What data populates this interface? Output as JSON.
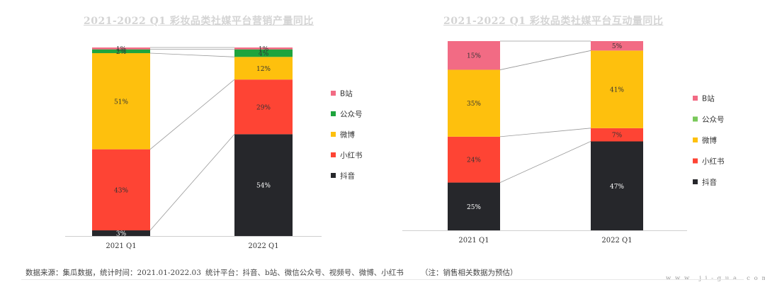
{
  "chart_data": [
    {
      "type": "bar",
      "stacked": true,
      "title": "2021-2022 Q1 彩妆品类社媒平台营销产量同比",
      "categories": [
        "2021 Q1",
        "2022 Q1"
      ],
      "unit": "%",
      "series": [
        {
          "name": "抖音",
          "color": "#26272b",
          "values": [
            3,
            54
          ]
        },
        {
          "name": "小红书",
          "color": "#fe4434",
          "values": [
            43,
            29
          ]
        },
        {
          "name": "微博",
          "color": "#fec00d",
          "values": [
            51,
            12
          ]
        },
        {
          "name": "公众号",
          "color": "#1ea43d",
          "values": [
            2,
            4
          ]
        },
        {
          "name": "B站",
          "color": "#f26b84",
          "values": [
            1,
            1
          ]
        }
      ],
      "legend_position": "right",
      "ylim": [
        0,
        100
      ]
    },
    {
      "type": "bar",
      "stacked": true,
      "title": "2021-2022 Q1 彩妆品类社媒平台互动量同比",
      "categories": [
        "2021 Q1",
        "2022 Q1"
      ],
      "unit": "%",
      "series": [
        {
          "name": "抖音",
          "color": "#26272b",
          "values": [
            25,
            47
          ]
        },
        {
          "name": "小红书",
          "color": "#fe4434",
          "values": [
            24,
            7
          ]
        },
        {
          "name": "微博",
          "color": "#fec00d",
          "values": [
            35,
            41
          ]
        },
        {
          "name": "公众号",
          "color": "#79c85a",
          "values": [
            0,
            0
          ]
        },
        {
          "name": "B站",
          "color": "#f26b84",
          "values": [
            15,
            5
          ]
        }
      ],
      "legend_position": "right",
      "ylim": [
        0,
        100
      ]
    }
  ],
  "footer": {
    "source": "数据来源：集瓜数据，统计时间：2021.01-2022.03",
    "platforms": "统计平台：抖音、b站、微信公众号、视频号、微博、小红书",
    "note": "（注：销售相关数据为预估）",
    "url": "w w w . j i - g u a . c o m"
  }
}
